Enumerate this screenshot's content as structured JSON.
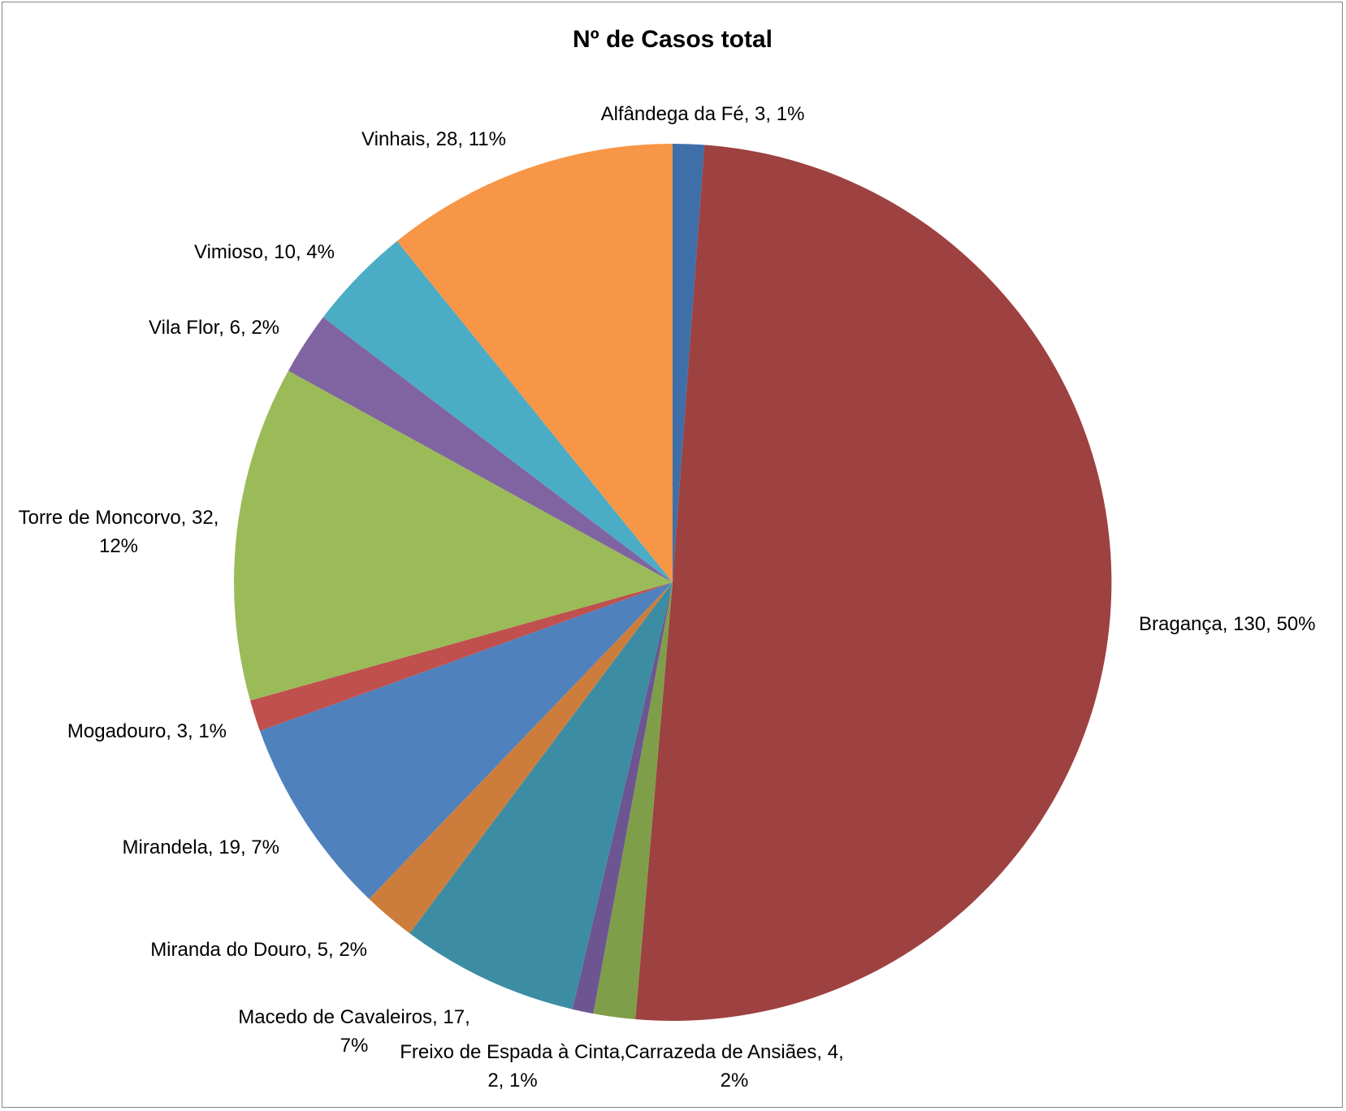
{
  "chart_data": {
    "type": "pie",
    "title": "Nº de Casos total",
    "slices": [
      {
        "category": "Alfândega da Fé",
        "value": 3,
        "percent": "1%",
        "color": "#3F6FA8"
      },
      {
        "category": "Bragança",
        "value": 130,
        "percent": "50%",
        "color": "#9E4141"
      },
      {
        "category": "Carrazeda de Ansiães",
        "value": 4,
        "percent": "2%",
        "color": "#7F9E4A"
      },
      {
        "category": "Freixo de Espada à Cinta",
        "value": 2,
        "percent": "1%",
        "color": "#6D5592"
      },
      {
        "category": "Macedo de Cavaleiros",
        "value": 17,
        "percent": "7%",
        "color": "#3C8DA4"
      },
      {
        "category": "Miranda do Douro",
        "value": 5,
        "percent": "2%",
        "color": "#CD7D3B"
      },
      {
        "category": "Mirandela",
        "value": 19,
        "percent": "7%",
        "color": "#4F81BD"
      },
      {
        "category": "Mogadouro",
        "value": 3,
        "percent": "1%",
        "color": "#C0504D"
      },
      {
        "category": "Torre de Moncorvo",
        "value": 32,
        "percent": "12%",
        "color": "#9BBB59"
      },
      {
        "category": "Vila Flor",
        "value": 6,
        "percent": "2%",
        "color": "#8064A2"
      },
      {
        "category": "Vimioso",
        "value": 10,
        "percent": "4%",
        "color": "#4BACC6"
      },
      {
        "category": "Vinhais",
        "value": 28,
        "percent": "11%",
        "color": "#F79646"
      }
    ],
    "labels": [
      {
        "lines": [
          "Alfândega da Fé, 3, 1%"
        ]
      },
      {
        "lines": [
          "Bragança, 130, 50%"
        ]
      },
      {
        "lines": [
          "Carrazeda de Ansiães, 4,",
          "2%"
        ]
      },
      {
        "lines": [
          "Freixo de Espada à Cinta,",
          "2, 1%"
        ]
      },
      {
        "lines": [
          "Macedo de Cavaleiros, 17,",
          "7%"
        ]
      },
      {
        "lines": [
          "Miranda do Douro, 5, 2%"
        ]
      },
      {
        "lines": [
          "Mirandela, 19, 7%"
        ]
      },
      {
        "lines": [
          "Mogadouro, 3, 1%"
        ]
      },
      {
        "lines": [
          "Torre de Moncorvo, 32,",
          "12%"
        ]
      },
      {
        "lines": [
          "Vila Flor, 6, 2%"
        ]
      },
      {
        "lines": [
          "Vimioso, 10, 4%"
        ]
      },
      {
        "lines": [
          "Vinhais, 28, 11%"
        ]
      }
    ]
  }
}
